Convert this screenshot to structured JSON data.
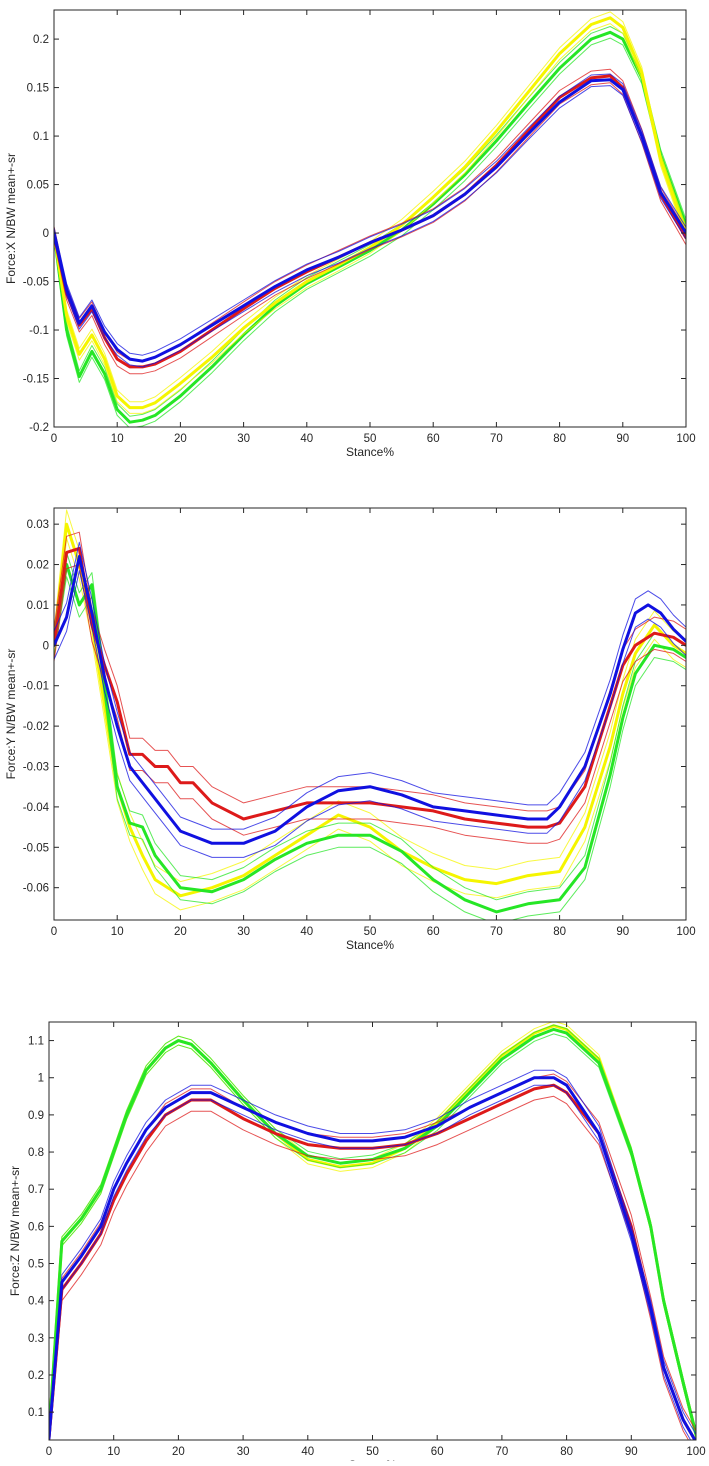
{
  "colors": {
    "blue": "#1010e0",
    "red": "#dd1a1a",
    "yellow": "#f5f500",
    "green": "#26e626",
    "axis": "#262626"
  },
  "chart_data": [
    {
      "type": "line",
      "title": "",
      "xlabel": "Stance%",
      "ylabel": "Force:X N/BW mean+-sr",
      "xlim": [
        0,
        100
      ],
      "ylim": [
        -0.2,
        0.23
      ],
      "xticks": [
        0,
        10,
        20,
        30,
        40,
        50,
        60,
        70,
        80,
        90,
        100
      ],
      "yticks": [
        -0.2,
        -0.15,
        -0.1,
        -0.05,
        0,
        0.05,
        0.1,
        0.15,
        0.2
      ],
      "ytick_labels": [
        "-0.2",
        "-0.15",
        "-0.1",
        "-0.05",
        "0",
        "0.05",
        "0.1",
        "0.15",
        "0.2"
      ],
      "series": [
        {
          "name": "green",
          "color": "green",
          "x": [
            0,
            2,
            4,
            6,
            8,
            10,
            12,
            14,
            16,
            20,
            25,
            30,
            35,
            40,
            45,
            50,
            55,
            60,
            65,
            70,
            75,
            80,
            85,
            88,
            90,
            93,
            96,
            100
          ],
          "mean": [
            0,
            -0.1,
            -0.148,
            -0.122,
            -0.145,
            -0.182,
            -0.195,
            -0.193,
            -0.188,
            -0.168,
            -0.138,
            -0.105,
            -0.075,
            -0.052,
            -0.035,
            -0.018,
            0.003,
            0.03,
            0.06,
            0.095,
            0.133,
            0.17,
            0.2,
            0.207,
            0.2,
            0.16,
            0.08,
            0.008
          ],
          "sd": 0.006
        },
        {
          "name": "yellow",
          "color": "yellow",
          "x": [
            0,
            2,
            4,
            6,
            8,
            10,
            12,
            14,
            16,
            20,
            25,
            30,
            35,
            40,
            45,
            50,
            55,
            60,
            65,
            70,
            75,
            80,
            85,
            88,
            90,
            93,
            96,
            100
          ],
          "mean": [
            0,
            -0.085,
            -0.125,
            -0.105,
            -0.13,
            -0.168,
            -0.18,
            -0.18,
            -0.175,
            -0.155,
            -0.128,
            -0.098,
            -0.072,
            -0.05,
            -0.033,
            -0.015,
            0.008,
            0.037,
            0.068,
            0.105,
            0.145,
            0.185,
            0.215,
            0.222,
            0.212,
            0.165,
            0.075,
            0
          ],
          "sd": 0.006
        },
        {
          "name": "red",
          "color": "red",
          "x": [
            0,
            2,
            4,
            6,
            8,
            10,
            12,
            14,
            16,
            20,
            25,
            30,
            35,
            40,
            45,
            50,
            55,
            60,
            65,
            70,
            75,
            80,
            85,
            88,
            90,
            93,
            96,
            100
          ],
          "mean": [
            0,
            -0.062,
            -0.095,
            -0.078,
            -0.108,
            -0.13,
            -0.138,
            -0.138,
            -0.135,
            -0.122,
            -0.1,
            -0.078,
            -0.057,
            -0.04,
            -0.025,
            -0.01,
            0.003,
            0.018,
            0.04,
            0.07,
            0.105,
            0.14,
            0.16,
            0.162,
            0.15,
            0.1,
            0.04,
            -0.005
          ],
          "sd": 0.007
        },
        {
          "name": "blue",
          "color": "blue",
          "x": [
            0,
            2,
            4,
            6,
            8,
            10,
            12,
            14,
            16,
            20,
            25,
            30,
            35,
            40,
            45,
            50,
            55,
            60,
            65,
            70,
            75,
            80,
            85,
            88,
            90,
            93,
            96,
            100
          ],
          "mean": [
            0,
            -0.058,
            -0.093,
            -0.075,
            -0.102,
            -0.12,
            -0.13,
            -0.132,
            -0.128,
            -0.115,
            -0.095,
            -0.075,
            -0.055,
            -0.038,
            -0.025,
            -0.01,
            0.003,
            0.018,
            0.04,
            0.068,
            0.102,
            0.135,
            0.157,
            0.158,
            0.148,
            0.1,
            0.042,
            0
          ],
          "sd": 0.006
        }
      ]
    },
    {
      "type": "line",
      "title": "",
      "xlabel": "Stance%",
      "ylabel": "Force:Y N/BW mean+-sr",
      "xlim": [
        0,
        100
      ],
      "ylim": [
        -0.068,
        0.034
      ],
      "xticks": [
        0,
        10,
        20,
        30,
        40,
        50,
        60,
        70,
        80,
        90,
        100
      ],
      "yticks": [
        -0.06,
        -0.05,
        -0.04,
        -0.03,
        -0.02,
        -0.01,
        0,
        0.01,
        0.02,
        0.03
      ],
      "ytick_labels": [
        "-0.06",
        "-0.05",
        "-0.04",
        "-0.03",
        "-0.02",
        "-0.01",
        "0",
        "0.01",
        "0.02",
        "0.03"
      ],
      "series": [
        {
          "name": "yellow",
          "color": "yellow",
          "x": [
            0,
            2,
            4,
            6,
            8,
            10,
            12,
            14,
            16,
            20,
            25,
            30,
            35,
            40,
            45,
            50,
            55,
            60,
            65,
            70,
            75,
            80,
            84,
            88,
            90,
            92,
            95,
            98,
            100
          ],
          "mean": [
            0,
            0.03,
            0.02,
            0.005,
            -0.015,
            -0.035,
            -0.045,
            -0.052,
            -0.058,
            -0.062,
            -0.06,
            -0.057,
            -0.052,
            -0.047,
            -0.042,
            -0.045,
            -0.051,
            -0.055,
            -0.058,
            -0.059,
            -0.057,
            -0.056,
            -0.045,
            -0.025,
            -0.012,
            -0.002,
            0.005,
            0,
            -0.002
          ],
          "sd": 0.0035
        },
        {
          "name": "green",
          "color": "green",
          "x": [
            0,
            2,
            4,
            6,
            8,
            10,
            12,
            14,
            16,
            20,
            25,
            30,
            35,
            40,
            45,
            50,
            55,
            60,
            65,
            70,
            75,
            80,
            84,
            88,
            90,
            92,
            95,
            98,
            100
          ],
          "mean": [
            0,
            0.02,
            0.01,
            0.015,
            -0.01,
            -0.035,
            -0.044,
            -0.045,
            -0.052,
            -0.06,
            -0.061,
            -0.058,
            -0.053,
            -0.049,
            -0.047,
            -0.047,
            -0.051,
            -0.058,
            -0.063,
            -0.066,
            -0.064,
            -0.063,
            -0.055,
            -0.032,
            -0.018,
            -0.007,
            0,
            -0.001,
            -0.003
          ],
          "sd": 0.003
        },
        {
          "name": "red",
          "color": "red",
          "x": [
            0,
            2,
            4,
            6,
            8,
            10,
            12,
            14,
            16,
            18,
            20,
            22,
            25,
            30,
            35,
            40,
            45,
            50,
            55,
            60,
            65,
            70,
            75,
            78,
            80,
            84,
            88,
            90,
            92,
            95,
            98,
            100
          ],
          "mean": [
            0,
            0.023,
            0.024,
            0.005,
            -0.005,
            -0.014,
            -0.027,
            -0.027,
            -0.03,
            -0.03,
            -0.034,
            -0.034,
            -0.039,
            -0.043,
            -0.041,
            -0.039,
            -0.039,
            -0.039,
            -0.04,
            -0.041,
            -0.043,
            -0.044,
            -0.045,
            -0.045,
            -0.044,
            -0.035,
            -0.015,
            -0.005,
            0,
            0.003,
            0.002,
            0
          ],
          "sd": 0.004
        },
        {
          "name": "blue",
          "color": "blue",
          "x": [
            0,
            2,
            4,
            6,
            8,
            10,
            12,
            15,
            18,
            20,
            25,
            30,
            35,
            40,
            45,
            50,
            55,
            60,
            65,
            70,
            75,
            78,
            80,
            84,
            88,
            90,
            92,
            94,
            96,
            98,
            100
          ],
          "mean": [
            0,
            0.007,
            0.022,
            0.008,
            -0.008,
            -0.02,
            -0.03,
            -0.036,
            -0.042,
            -0.046,
            -0.049,
            -0.049,
            -0.046,
            -0.04,
            -0.036,
            -0.035,
            -0.037,
            -0.04,
            -0.041,
            -0.042,
            -0.043,
            -0.043,
            -0.04,
            -0.03,
            -0.012,
            -0.001,
            0.008,
            0.01,
            0.008,
            0.004,
            0.001
          ],
          "sd": 0.0035
        }
      ]
    },
    {
      "type": "line",
      "title": "",
      "xlabel": "Stance%",
      "ylabel": "Force:Z N/BW mean+-sr",
      "xlim": [
        0,
        100
      ],
      "ylim": [
        0.025,
        1.15
      ],
      "xticks": [
        0,
        10,
        20,
        30,
        40,
        50,
        60,
        70,
        80,
        90,
        100
      ],
      "yticks": [
        0.1,
        0.2,
        0.3,
        0.4,
        0.5,
        0.6,
        0.7,
        0.8,
        0.9,
        1,
        1.1
      ],
      "ytick_labels": [
        "0.1",
        "0.2",
        "0.3",
        "0.4",
        "0.5",
        "0.6",
        "0.7",
        "0.8",
        "0.9",
        "1",
        "1.1"
      ],
      "series": [
        {
          "name": "yellow",
          "color": "yellow",
          "x": [
            0,
            2,
            5,
            8,
            10,
            12,
            15,
            18,
            20,
            22,
            25,
            30,
            35,
            40,
            45,
            50,
            55,
            60,
            65,
            70,
            75,
            78,
            80,
            85,
            90,
            93,
            95,
            98,
            100
          ],
          "mean": [
            0.04,
            0.56,
            0.62,
            0.7,
            0.8,
            0.9,
            1.02,
            1.08,
            1.1,
            1.09,
            1.04,
            0.94,
            0.85,
            0.78,
            0.76,
            0.77,
            0.81,
            0.88,
            0.97,
            1.06,
            1.12,
            1.14,
            1.13,
            1.05,
            0.8,
            0.6,
            0.4,
            0.18,
            0.04
          ],
          "sd": 0.012
        },
        {
          "name": "green",
          "color": "green",
          "x": [
            0,
            2,
            5,
            8,
            10,
            12,
            15,
            18,
            20,
            22,
            25,
            30,
            35,
            40,
            45,
            50,
            55,
            60,
            65,
            70,
            75,
            78,
            80,
            85,
            90,
            93,
            95,
            98,
            100
          ],
          "mean": [
            0.04,
            0.56,
            0.62,
            0.7,
            0.8,
            0.9,
            1.02,
            1.08,
            1.1,
            1.09,
            1.04,
            0.94,
            0.85,
            0.79,
            0.77,
            0.78,
            0.81,
            0.87,
            0.96,
            1.05,
            1.11,
            1.13,
            1.12,
            1.04,
            0.8,
            0.6,
            0.4,
            0.18,
            0.04
          ],
          "sd": 0.012
        },
        {
          "name": "red",
          "color": "red",
          "x": [
            0,
            2,
            5,
            8,
            10,
            12,
            15,
            18,
            20,
            22,
            25,
            30,
            35,
            40,
            45,
            50,
            55,
            60,
            65,
            70,
            75,
            78,
            80,
            85,
            90,
            93,
            95,
            98,
            100
          ],
          "mean": [
            0.03,
            0.43,
            0.5,
            0.58,
            0.67,
            0.74,
            0.83,
            0.9,
            0.92,
            0.94,
            0.94,
            0.89,
            0.85,
            0.82,
            0.81,
            0.81,
            0.82,
            0.85,
            0.89,
            0.93,
            0.97,
            0.98,
            0.96,
            0.85,
            0.6,
            0.38,
            0.22,
            0.08,
            0.02
          ],
          "sd": 0.03
        },
        {
          "name": "blue",
          "color": "blue",
          "x": [
            0,
            2,
            5,
            8,
            10,
            12,
            15,
            18,
            20,
            22,
            25,
            30,
            35,
            40,
            45,
            50,
            55,
            60,
            65,
            70,
            75,
            78,
            80,
            85,
            90,
            93,
            95,
            98,
            100
          ],
          "mean": [
            0.03,
            0.45,
            0.52,
            0.6,
            0.7,
            0.77,
            0.86,
            0.92,
            0.94,
            0.96,
            0.96,
            0.92,
            0.88,
            0.85,
            0.83,
            0.83,
            0.84,
            0.87,
            0.92,
            0.96,
            1,
            1,
            0.98,
            0.85,
            0.58,
            0.38,
            0.22,
            0.08,
            0.02
          ],
          "sd": 0.02
        }
      ]
    }
  ]
}
